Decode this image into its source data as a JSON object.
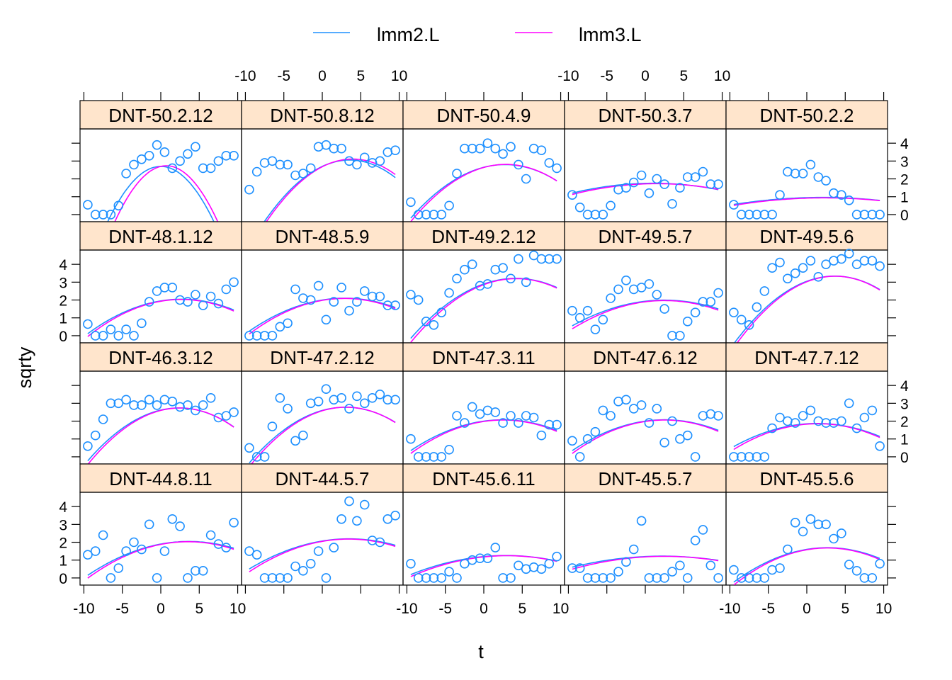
{
  "chart_data": {
    "type": "scatter",
    "xlabel": "t",
    "ylabel": "sqrty",
    "xlim": [
      -10.5,
      10.5
    ],
    "ylim": [
      -0.4,
      4.8
    ],
    "x_ticks": [
      -10,
      -5,
      0,
      5,
      10
    ],
    "y_ticks": [
      0,
      1,
      2,
      3,
      4
    ],
    "legend": {
      "position": "top",
      "entries": [
        {
          "label": "lmm2.L",
          "color": "#1e90ff"
        },
        {
          "label": "lmm3.L",
          "color": "#ff00ff"
        }
      ]
    },
    "colors": {
      "points": "#1e90ff",
      "lmm2": "#1e90ff",
      "lmm3": "#ff00ff",
      "strip": "#ffe5cc"
    },
    "x": [
      -9.5,
      -8.5,
      -7.5,
      -6.5,
      -5.5,
      -4.5,
      -3.5,
      -2.5,
      -1.5,
      -0.5,
      0.5,
      1.5,
      2.5,
      3.5,
      4.5,
      5.5,
      6.5,
      7.5,
      8.5,
      9.5
    ],
    "panels": [
      {
        "name": "DNT-50.2.12",
        "row": 0,
        "col": 0,
        "y": [
          0.55,
          0,
          0,
          0,
          0.5,
          2.3,
          2.8,
          3.1,
          3.3,
          3.9,
          3.5,
          2.6,
          3.0,
          3.4,
          3.8,
          2.6,
          2.6,
          3.0,
          3.3,
          3.3
        ],
        "lmm2": [
          -0.065,
          0,
          2.7
        ],
        "lmm3": [
          -0.07,
          0.1,
          2.7
        ]
      },
      {
        "name": "DNT-50.8.12",
        "row": 0,
        "col": 1,
        "y": [
          1.4,
          2.4,
          2.9,
          3.0,
          2.8,
          2.8,
          2.2,
          2.3,
          2.6,
          3.8,
          3.9,
          3.7,
          3.7,
          3.0,
          2.8,
          3.2,
          2.9,
          3.0,
          3.5,
          3.6
        ],
        "lmm2": [
          -0.028,
          0.2,
          2.7
        ],
        "lmm3": [
          -0.028,
          0.22,
          2.68
        ]
      },
      {
        "name": "DNT-50.4.9",
        "row": 0,
        "col": 2,
        "y": [
          0.7,
          0,
          0,
          0,
          0,
          0.5,
          2.3,
          3.7,
          3.7,
          3.7,
          4.0,
          3.7,
          3.4,
          3.8,
          2.8,
          2.0,
          3.7,
          3.6,
          2.9,
          2.6
        ],
        "lmm2": [
          -0.02,
          0.11,
          2.65
        ],
        "lmm3": [
          -0.021,
          0.12,
          2.64
        ]
      },
      {
        "name": "DNT-50.3.7",
        "row": 0,
        "col": 3,
        "y": [
          1.1,
          0.4,
          0,
          0,
          0,
          0.5,
          1.4,
          1.5,
          1.8,
          2.2,
          1.2,
          2.0,
          1.7,
          0.6,
          1.5,
          2.1,
          2.1,
          2.4,
          1.7,
          1.7
        ],
        "lmm2": [
          -0.005,
          0.01,
          1.75
        ],
        "lmm3": [
          -0.005,
          0.015,
          1.72
        ]
      },
      {
        "name": "DNT-50.2.2",
        "row": 0,
        "col": 4,
        "y": [
          0.55,
          0,
          0,
          0,
          0,
          0,
          1.1,
          2.4,
          2.3,
          2.3,
          2.8,
          2.1,
          1.9,
          1.2,
          1.1,
          0.8,
          0,
          0,
          0,
          0
        ],
        "lmm2": [
          -0.003,
          0.012,
          0.95
        ],
        "lmm3": [
          -0.003,
          0.014,
          0.92
        ]
      },
      {
        "name": "DNT-48.1.12",
        "row": 1,
        "col": 0,
        "y": [
          0.65,
          0,
          0,
          0.35,
          0,
          0.35,
          0,
          0.7,
          1.9,
          2.5,
          2.7,
          2.7,
          2.0,
          1.9,
          2.3,
          1.7,
          2.2,
          1.8,
          2.6,
          3.0
        ],
        "lmm2": [
          -0.013,
          0.07,
          1.95
        ],
        "lmm3": [
          -0.014,
          0.075,
          1.93
        ]
      },
      {
        "name": "DNT-48.5.9",
        "row": 1,
        "col": 1,
        "y": [
          0,
          0,
          0,
          0,
          0.5,
          0.7,
          2.6,
          2.1,
          2.0,
          2.8,
          0.9,
          1.9,
          2.7,
          1.4,
          1.9,
          2.5,
          2.2,
          2.2,
          1.7,
          1.7
        ],
        "lmm2": [
          -0.012,
          0.07,
          2.0
        ],
        "lmm3": [
          -0.013,
          0.075,
          1.98
        ]
      },
      {
        "name": "DNT-49.2.12",
        "row": 1,
        "col": 2,
        "y": [
          2.3,
          2.0,
          0.8,
          0.6,
          1.3,
          2.4,
          3.2,
          3.7,
          4.0,
          2.8,
          2.9,
          3.7,
          3.8,
          3.2,
          4.3,
          3.0,
          4.5,
          4.3,
          4.3,
          4.3
        ],
        "lmm2": [
          -0.018,
          0.15,
          2.9
        ],
        "lmm3": [
          -0.019,
          0.16,
          2.86
        ]
      },
      {
        "name": "DNT-49.5.7",
        "row": 1,
        "col": 3,
        "y": [
          1.4,
          1.0,
          1.4,
          0.35,
          0.9,
          2.1,
          2.6,
          3.1,
          2.6,
          2.7,
          2.9,
          2.3,
          1.5,
          0,
          0,
          0.8,
          1.3,
          1.9,
          1.9,
          2.4
        ],
        "lmm2": [
          -0.01,
          0.05,
          1.93
        ],
        "lmm3": [
          -0.011,
          0.055,
          1.9
        ]
      },
      {
        "name": "DNT-49.5.6",
        "row": 1,
        "col": 4,
        "y": [
          1.3,
          0.9,
          0.6,
          1.6,
          2.5,
          3.8,
          4.1,
          3.2,
          3.5,
          3.8,
          4.2,
          3.3,
          4.0,
          4.2,
          4.3,
          4.6,
          4.0,
          4.2,
          4.2,
          3.9
        ],
        "lmm2": [
          -0.022,
          0.16,
          3.05
        ],
        "lmm3": [
          -0.023,
          0.17,
          3.02
        ]
      },
      {
        "name": "DNT-46.3.12",
        "row": 2,
        "col": 0,
        "y": [
          0.6,
          1.2,
          2.1,
          3.0,
          3.0,
          3.2,
          2.9,
          2.9,
          3.2,
          2.9,
          3.2,
          3.1,
          2.8,
          2.9,
          2.6,
          2.9,
          3.3,
          2.2,
          2.3,
          2.5
        ],
        "lmm2": [
          -0.021,
          0.1,
          2.62
        ],
        "lmm3": [
          -0.022,
          0.11,
          2.6
        ]
      },
      {
        "name": "DNT-47.2.12",
        "row": 2,
        "col": 1,
        "y": [
          0.5,
          0,
          0,
          1.7,
          3.3,
          2.7,
          0.9,
          1.2,
          3.0,
          3.1,
          3.8,
          3.2,
          3.3,
          2.7,
          3.4,
          3.0,
          3.3,
          3.5,
          3.2,
          3.2
        ],
        "lmm2": [
          -0.02,
          0.12,
          2.6
        ],
        "lmm3": [
          -0.021,
          0.13,
          2.58
        ]
      },
      {
        "name": "DNT-47.3.11",
        "row": 2,
        "col": 2,
        "y": [
          1.0,
          0,
          0,
          0,
          0,
          0.4,
          2.3,
          1.9,
          2.8,
          2.4,
          2.6,
          2.5,
          1.9,
          2.3,
          1.9,
          2.3,
          2.2,
          1.2,
          1.8,
          1.8
        ],
        "lmm2": [
          -0.012,
          0.06,
          2.0
        ],
        "lmm3": [
          -0.013,
          0.065,
          1.98
        ]
      },
      {
        "name": "DNT-47.6.12",
        "row": 2,
        "col": 3,
        "y": [
          0.9,
          0,
          1.0,
          1.4,
          2.6,
          2.3,
          3.1,
          3.2,
          2.7,
          2.9,
          1.9,
          2.7,
          0.8,
          2.0,
          1.0,
          1.2,
          0,
          2.3,
          2.4,
          2.3
        ],
        "lmm2": [
          -0.012,
          0.06,
          2.0
        ],
        "lmm3": [
          -0.013,
          0.065,
          1.98
        ]
      },
      {
        "name": "DNT-47.7.12",
        "row": 2,
        "col": 4,
        "y": [
          0,
          0,
          0,
          0,
          0,
          1.6,
          2.2,
          2.0,
          1.9,
          2.3,
          2.6,
          2.0,
          1.9,
          1.9,
          2.0,
          3.0,
          1.6,
          2.2,
          2.6,
          0.6
        ],
        "lmm2": [
          -0.011,
          0.03,
          1.85
        ],
        "lmm3": [
          -0.012,
          0.035,
          1.83
        ]
      },
      {
        "name": "DNT-44.8.11",
        "row": 3,
        "col": 0,
        "y": [
          1.3,
          1.5,
          2.4,
          0,
          0.55,
          1.5,
          2.0,
          1.6,
          3.0,
          0,
          1.5,
          3.3,
          2.9,
          0,
          0.4,
          0.4,
          2.4,
          1.9,
          1.7,
          3.1
        ],
        "lmm2": [
          -0.011,
          0.08,
          1.9
        ],
        "lmm3": [
          -0.012,
          0.085,
          1.88
        ]
      },
      {
        "name": "DNT-44.5.7",
        "row": 3,
        "col": 1,
        "y": [
          1.5,
          1.3,
          0,
          0,
          0,
          0,
          0.65,
          0.4,
          0.8,
          1.5,
          0,
          1.7,
          3.3,
          4.3,
          3.2,
          4.1,
          2.1,
          2.0,
          3.3,
          3.5
        ],
        "lmm2": [
          -0.01,
          0.07,
          2.07
        ],
        "lmm3": [
          -0.011,
          0.075,
          2.05
        ]
      },
      {
        "name": "DNT-45.6.11",
        "row": 3,
        "col": 2,
        "y": [
          0.8,
          0,
          0,
          0,
          0,
          0.35,
          0,
          0.8,
          1.0,
          1.1,
          1.1,
          1.7,
          0,
          0,
          0.7,
          0.5,
          0.6,
          0.5,
          0.8,
          1.2
        ],
        "lmm2": [
          -0.007,
          0.04,
          1.2
        ],
        "lmm3": [
          -0.0075,
          0.045,
          1.18
        ]
      },
      {
        "name": "DNT-45.5.7",
        "row": 3,
        "col": 3,
        "y": [
          0.55,
          0.55,
          0,
          0,
          0,
          0,
          0.35,
          0.9,
          1.6,
          3.2,
          0,
          0,
          0,
          0.35,
          0.7,
          0,
          2.1,
          2.7,
          0.7,
          0
        ],
        "lmm2": [
          -0.0045,
          0.02,
          1.2
        ],
        "lmm3": [
          -0.005,
          0.025,
          1.18
        ]
      },
      {
        "name": "DNT-45.5.6",
        "row": 3,
        "col": 4,
        "y": [
          0.45,
          0,
          0,
          0,
          0,
          0.45,
          0.55,
          1.6,
          3.1,
          2.6,
          3.3,
          3.0,
          3.0,
          2.2,
          2.5,
          0.75,
          0.4,
          0,
          0,
          0.8
        ],
        "lmm2": [
          -0.013,
          0.07,
          1.6
        ],
        "lmm3": [
          -0.014,
          0.075,
          1.58
        ]
      }
    ]
  }
}
